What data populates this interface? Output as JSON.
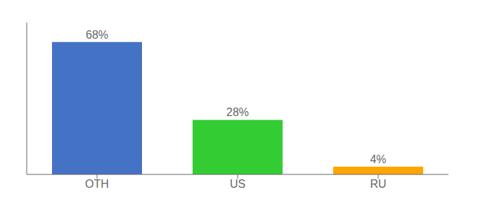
{
  "chart_data": {
    "type": "bar",
    "categories": [
      "OTH",
      "US",
      "RU"
    ],
    "values": [
      68,
      28,
      4
    ],
    "value_labels": [
      "68%",
      "28%",
      "4%"
    ],
    "colors": [
      "#4472C4",
      "#33CC33",
      "#FFA500"
    ],
    "ylim": [
      0,
      78
    ],
    "data_labels": true,
    "tick_labels": "x",
    "grid": false
  }
}
